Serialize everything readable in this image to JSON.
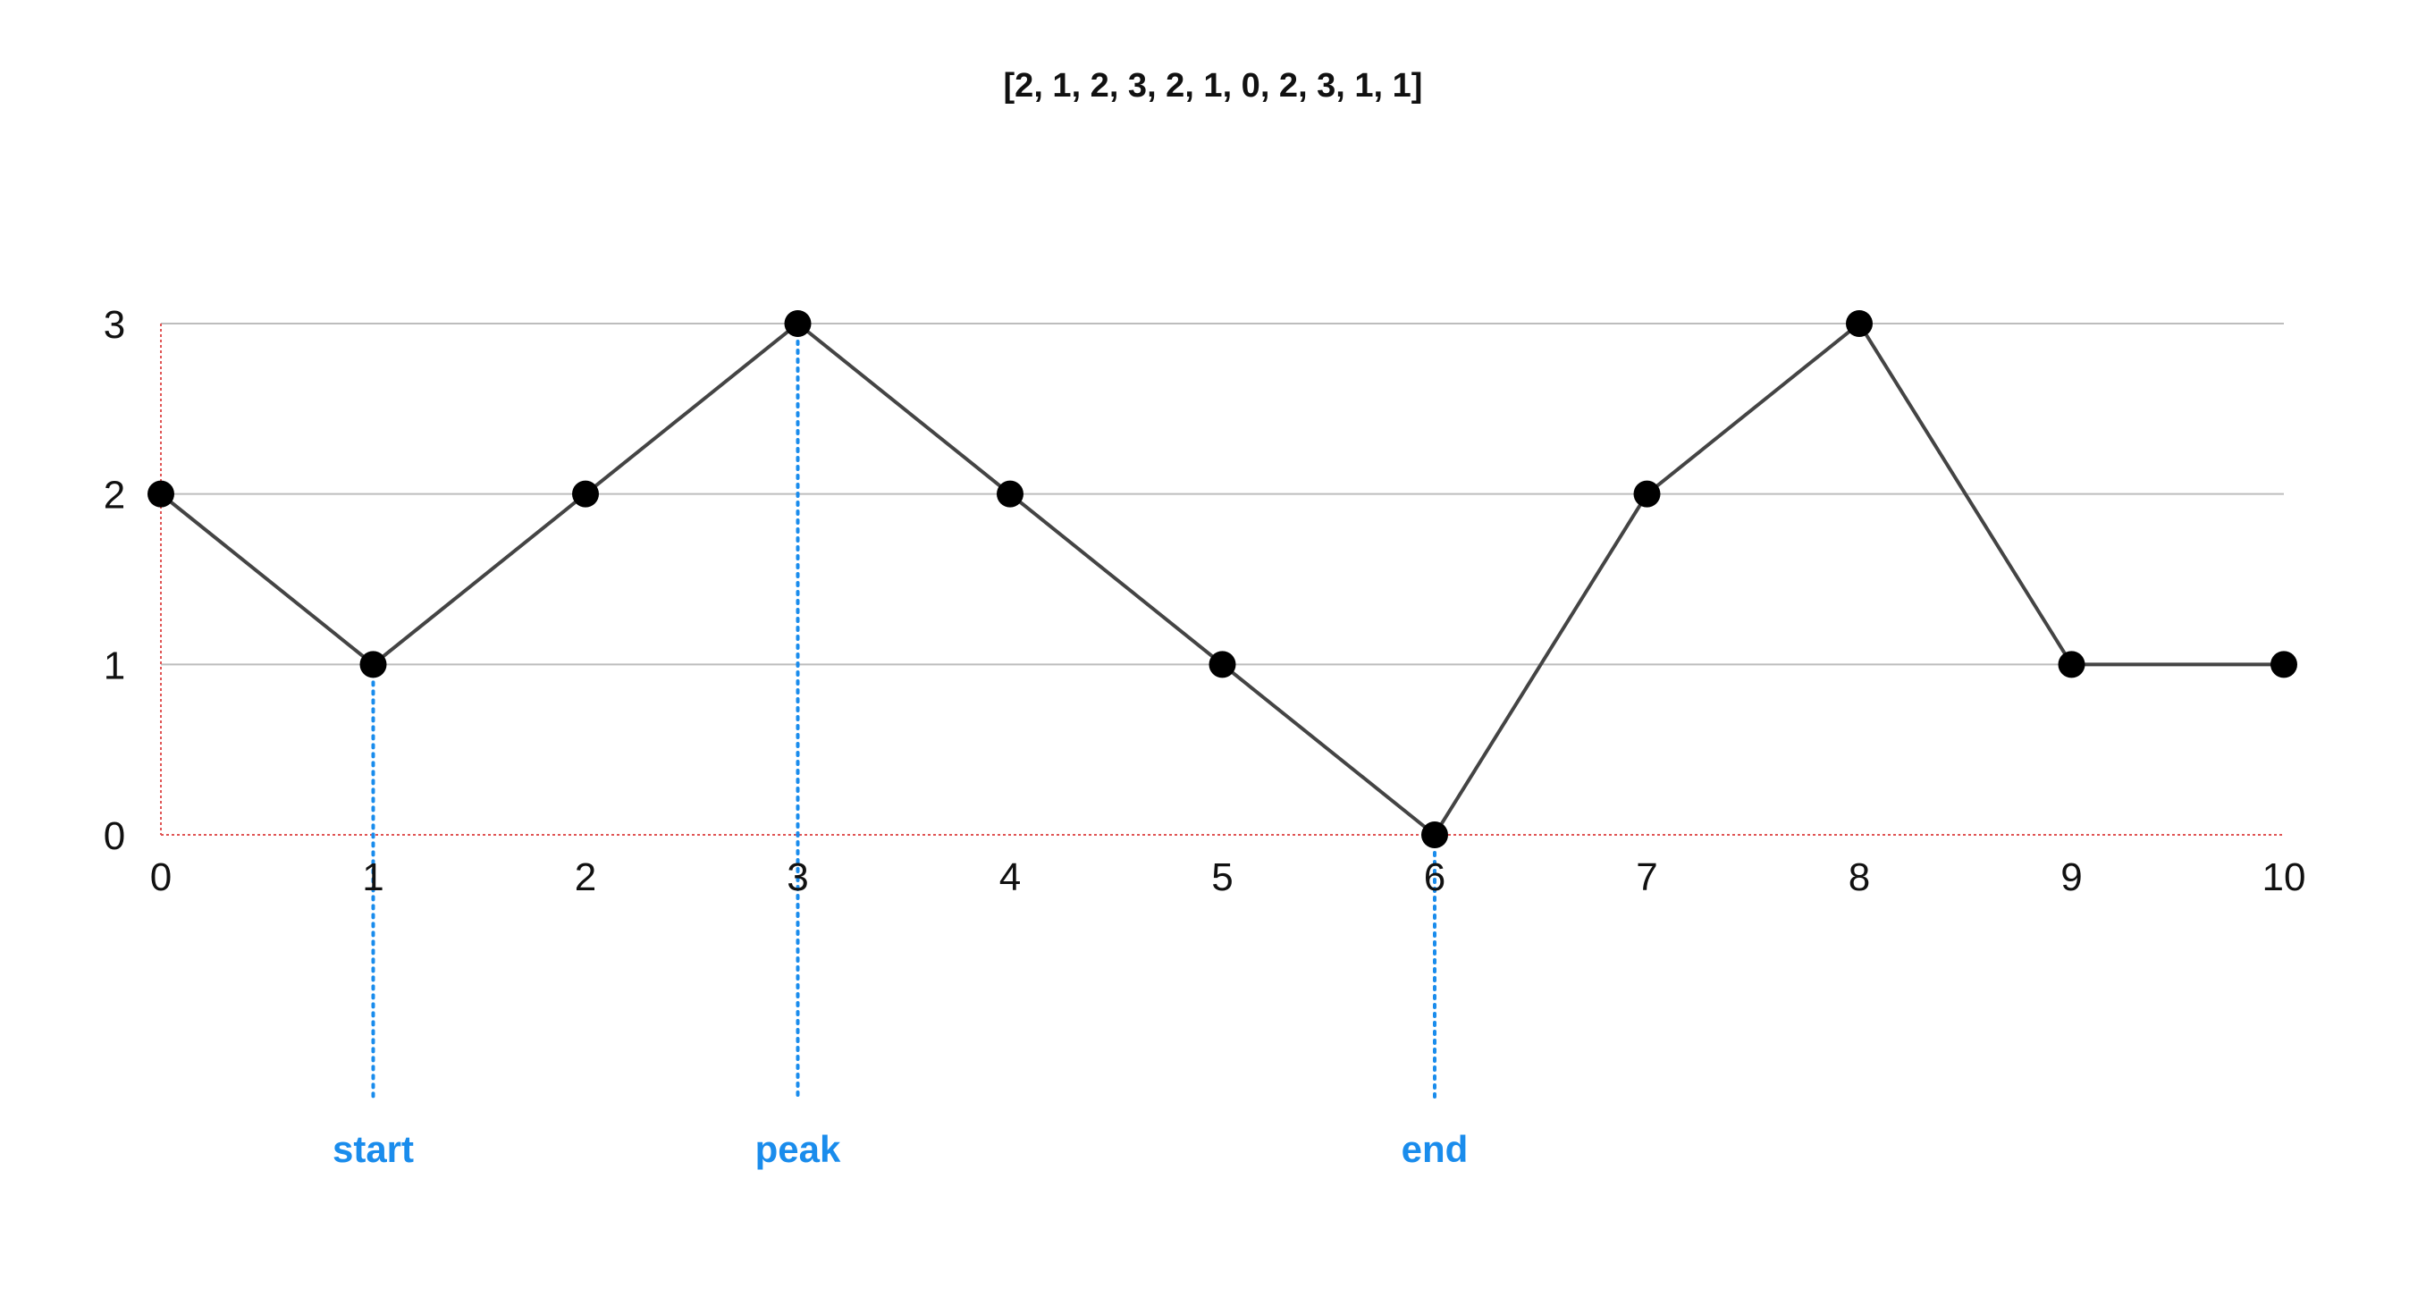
{
  "chart_data": {
    "type": "line",
    "title": "[2, 1, 2, 3, 2, 1, 0, 2, 3, 1, 1]",
    "xlabel": "",
    "ylabel": "",
    "x": [
      0,
      1,
      2,
      3,
      4,
      5,
      6,
      7,
      8,
      9,
      10
    ],
    "series": [
      {
        "values": [
          2,
          1,
          2,
          3,
          2,
          1,
          0,
          2,
          3,
          1,
          1
        ]
      }
    ],
    "xlim": [
      0,
      10
    ],
    "ylim": [
      0,
      3
    ],
    "x_ticks": [
      "0",
      "1",
      "2",
      "3",
      "4",
      "5",
      "6",
      "7",
      "8",
      "9",
      "10"
    ],
    "y_ticks": [
      "0",
      "1",
      "2",
      "3"
    ],
    "grid": true,
    "annotations": [
      {
        "x": 1,
        "label": "start"
      },
      {
        "x": 3,
        "label": "peak"
      },
      {
        "x": 6,
        "label": "end"
      }
    ]
  },
  "colors": {
    "line": "#444444",
    "marker": "#000000",
    "grid": "#bdbdbd",
    "axis": "#e05555",
    "annotation": "#1a8cec",
    "text": "#111111"
  }
}
